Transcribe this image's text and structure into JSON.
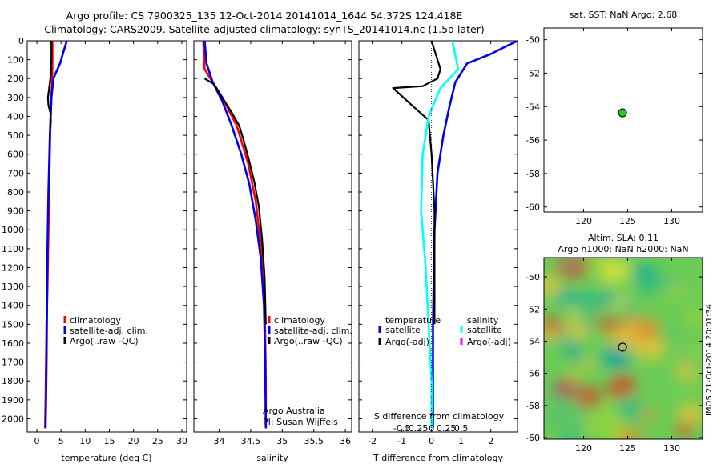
{
  "figure": {
    "title_line1": "Argo profile: CS 7900325_135 12-Oct-2014 20141014_1644 54.372S 124.418E",
    "title_line2": "Climatology: CARS2009. Satellite-adjusted climatology: synTS_20141014.nc (1.5d later)",
    "watermark": "IMOS 21-Oct-2014 20:01:34"
  },
  "chart_data": [
    {
      "type": "line",
      "panel": "temperature",
      "xlabel": "temperature (deg C)",
      "xlim": [
        -2,
        31
      ],
      "xticks": [
        0,
        5,
        10,
        15,
        20,
        25,
        30
      ],
      "ylim": [
        2070,
        0
      ],
      "yticks": [
        0,
        100,
        200,
        300,
        400,
        500,
        600,
        700,
        800,
        900,
        1000,
        1100,
        1200,
        1300,
        1400,
        1500,
        1600,
        1700,
        1800,
        1900,
        2000
      ],
      "legend": [
        "climatology",
        "satellite-adj. clim.",
        "Argo(..raw -QC)"
      ],
      "colors": {
        "clim": "#ff0000",
        "sat": "#0000ee",
        "argo": "#000000"
      },
      "series": [
        {
          "key": "clim",
          "x": [
            3.2,
            3.2,
            3.0,
            2.8,
            2.6,
            2.4,
            2.2,
            2.0,
            1.9,
            1.8,
            1.7
          ],
          "y": [
            0,
            150,
            300,
            450,
            700,
            1000,
            1300,
            1500,
            1700,
            1900,
            2050
          ]
        },
        {
          "key": "sat",
          "x": [
            6.2,
            5.6,
            4.8,
            3.4,
            3.0,
            2.7,
            2.4,
            2.2,
            2.1,
            2.0,
            1.9,
            1.8
          ],
          "y": [
            0,
            50,
            120,
            200,
            300,
            500,
            800,
            1100,
            1400,
            1700,
            1900,
            2050
          ]
        },
        {
          "key": "argo",
          "x": [
            3.0,
            3.0,
            2.9,
            2.6,
            2.3,
            2.4,
            2.8,
            2.9,
            2.8
          ],
          "y": [
            0,
            100,
            180,
            240,
            300,
            340,
            380,
            420,
            460
          ]
        }
      ]
    },
    {
      "type": "line",
      "panel": "salinity",
      "xlabel": "salinity",
      "xlim": [
        33.6,
        36.1
      ],
      "xticks": [
        34,
        34.5,
        35,
        35.5,
        36
      ],
      "ylim": [
        2070,
        0
      ],
      "legend": [
        "climatology",
        "satellite-adj. clim.",
        "Argo(..raw -QC)"
      ],
      "annotation": [
        "Argo Australia",
        "PI: Susan Wijffels"
      ],
      "series": [
        {
          "key": "clim",
          "x": [
            33.75,
            33.77,
            33.9,
            34.05,
            34.28,
            34.46,
            34.58,
            34.65,
            34.71,
            34.73,
            34.74,
            34.74
          ],
          "y": [
            0,
            150,
            220,
            300,
            450,
            650,
            850,
            1050,
            1300,
            1550,
            1800,
            2050
          ]
        },
        {
          "key": "sat",
          "x": [
            33.77,
            33.8,
            33.9,
            34.05,
            34.2,
            34.35,
            34.48,
            34.58,
            34.66,
            34.71,
            34.73,
            34.74
          ],
          "y": [
            0,
            120,
            220,
            320,
            450,
            600,
            760,
            950,
            1150,
            1400,
            1700,
            2050
          ]
        },
        {
          "key": "argo",
          "x": [
            33.77,
            33.92,
            34.05,
            34.2,
            34.32,
            34.4,
            34.48,
            34.56,
            34.63,
            34.68,
            34.72,
            34.74
          ],
          "y": [
            200,
            230,
            300,
            380,
            450,
            540,
            640,
            750,
            880,
            1050,
            1250,
            1500
          ]
        }
      ]
    },
    {
      "type": "line",
      "panel": "difference",
      "xlabel": "T difference from climatology",
      "xlabel2": "S difference from climatology",
      "xlim": [
        -2.45,
        2.9
      ],
      "xticks": [
        -2,
        -1,
        0,
        1,
        2
      ],
      "x2ticks": [
        -0.5,
        -0.25,
        0,
        0.25,
        0.5
      ],
      "ylim": [
        2070,
        0
      ],
      "legend": {
        "temperature": "temperature",
        "salinity": "salinity",
        "t_sat": "satellite",
        "t_argo": "Argo(-adj)",
        "s_sat": "satellite",
        "s_argo": "Argo(-adj)"
      },
      "colors": {
        "t_sat": "#0000ee",
        "t_argo": "#000000",
        "s_sat": "#00ffff",
        "s_argo": "#ff00ff"
      },
      "series": [
        {
          "key": "t_sat",
          "x": [
            2.9,
            2.5,
            2.0,
            1.2,
            0.8,
            0.6,
            0.4,
            0.2,
            0.1,
            0.05,
            0.05
          ],
          "y": [
            0,
            30,
            70,
            120,
            220,
            350,
            500,
            700,
            1000,
            1500,
            2050
          ]
        },
        {
          "key": "t_argo",
          "x": [
            0.0,
            0.3,
            0.2,
            -0.3,
            -1.3,
            -0.6,
            -0.1,
            0.0,
            0.1,
            0.1,
            0.1
          ],
          "y": [
            0,
            150,
            200,
            240,
            250,
            350,
            420,
            600,
            900,
            1300,
            1500
          ]
        },
        {
          "key": "s_sat",
          "x": [
            0.7,
            0.9,
            0.3,
            -0.1,
            -0.3,
            -0.35,
            -0.2,
            -0.1,
            0.0,
            0.0
          ],
          "y": [
            0,
            150,
            250,
            400,
            600,
            900,
            1200,
            1500,
            1800,
            2050
          ]
        }
      ]
    },
    {
      "type": "scatter",
      "panel": "map",
      "title": "sat. SST: NaN Argo: 2.68",
      "xlim": [
        115.5,
        133.5
      ],
      "xticks": [
        120,
        125,
        130
      ],
      "ylim": [
        -60.3,
        -49.3
      ],
      "yticks": [
        -50,
        -52,
        -54,
        -56,
        -58,
        -60
      ],
      "points": [
        {
          "lon": 124.418,
          "lat": -54.372,
          "color": "#22cc22"
        }
      ]
    },
    {
      "type": "heatmap",
      "panel": "sla",
      "title_line1": "Altim. SLA: 0.11",
      "title_line2": "Argo h1000: NaN h2000: NaN",
      "xlim": [
        115.5,
        133.5
      ],
      "xticks": [
        120,
        125,
        130
      ],
      "ylim": [
        -60.1,
        -48.8
      ],
      "yticks": [
        -50,
        -52,
        -54,
        -56,
        -58,
        -60
      ],
      "colormap": [
        "#00a6a6",
        "#28b884",
        "#5cc85a",
        "#9ed63a",
        "#dde23a",
        "#e6c33a",
        "#e08a33",
        "#d14a2a"
      ],
      "points": [
        {
          "lon": 124.418,
          "lat": -54.372
        }
      ]
    }
  ]
}
